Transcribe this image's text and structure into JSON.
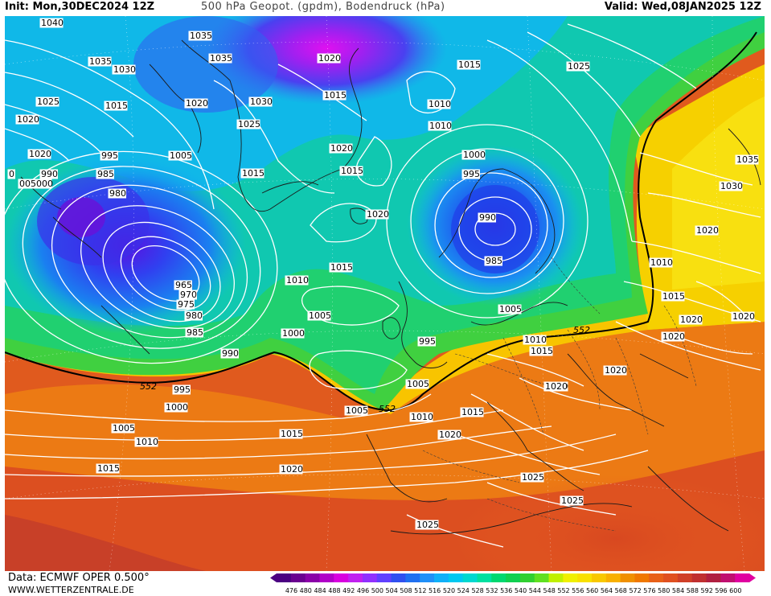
{
  "header": {
    "init": "Init: Mon,30DEC2024 12Z",
    "title": "500 hPa Geopot. (gpdm), Bodendruck (hPa)",
    "valid": "Valid: Wed,08JAN2025 12Z"
  },
  "footer": {
    "source": "Data: ECMWF OPER 0.500°",
    "website": "WWW.WETTERZENTRALE.DE"
  },
  "legend": {
    "ticks": [
      "476",
      "480",
      "484",
      "488",
      "492",
      "496",
      "500",
      "504",
      "508",
      "512",
      "516",
      "520",
      "524",
      "528",
      "532",
      "536",
      "540",
      "544",
      "548",
      "552",
      "556",
      "560",
      "564",
      "568",
      "572",
      "576",
      "580",
      "584",
      "588",
      "592",
      "596",
      "600"
    ],
    "colors": [
      "#4b0082",
      "#6a0090",
      "#8a00a8",
      "#b000c8",
      "#d800e0",
      "#c020f0",
      "#9030ff",
      "#6040ff",
      "#3050f0",
      "#2070f0",
      "#2090f8",
      "#10b0f8",
      "#00c8f0",
      "#00d8d0",
      "#00e0a0",
      "#00d870",
      "#10d050",
      "#30d030",
      "#60e020",
      "#c0f000",
      "#f0f000",
      "#f8e000",
      "#f8c800",
      "#f8b000",
      "#f09000",
      "#f07800",
      "#e86018",
      "#e05020",
      "#d04028",
      "#c03030",
      "#b02040",
      "#c01070",
      "#e000a0"
    ]
  },
  "isobars": [
    {
      "label": "1040"
    },
    {
      "label": "1035"
    },
    {
      "label": "1035"
    },
    {
      "label": "1035"
    },
    {
      "label": "1030"
    },
    {
      "label": "1030"
    },
    {
      "label": "1025"
    },
    {
      "label": "1020"
    },
    {
      "label": "1015"
    },
    {
      "label": "1020"
    },
    {
      "label": "1025"
    },
    {
      "label": "995"
    },
    {
      "label": "1005"
    },
    {
      "label": "990"
    },
    {
      "label": "985"
    },
    {
      "label": "980"
    },
    {
      "label": "1015"
    },
    {
      "label": "005000"
    },
    {
      "label": "0"
    },
    {
      "label": "965"
    },
    {
      "label": "970"
    },
    {
      "label": "975"
    },
    {
      "label": "980"
    },
    {
      "label": "985"
    },
    {
      "label": "990"
    },
    {
      "label": "1010"
    },
    {
      "label": "1005"
    },
    {
      "label": "1000"
    },
    {
      "label": "1015"
    },
    {
      "label": "1020"
    },
    {
      "label": "1020"
    },
    {
      "label": "1015"
    },
    {
      "label": "1010"
    },
    {
      "label": "1015"
    },
    {
      "label": "1010"
    },
    {
      "label": "1020"
    },
    {
      "label": "1015"
    },
    {
      "label": "1025"
    },
    {
      "label": "1005"
    },
    {
      "label": "1000"
    },
    {
      "label": "995"
    },
    {
      "label": "990"
    },
    {
      "label": "985"
    },
    {
      "label": "1010"
    },
    {
      "label": "1005"
    },
    {
      "label": "1035"
    },
    {
      "label": "1030"
    },
    {
      "label": "1020"
    },
    {
      "label": "1015"
    },
    {
      "label": "1020"
    },
    {
      "label": "1020"
    },
    {
      "label": "1020"
    },
    {
      "label": "1010"
    },
    {
      "label": "1015"
    },
    {
      "label": "1020"
    },
    {
      "label": "995"
    },
    {
      "label": "1000"
    },
    {
      "label": "995"
    },
    {
      "label": "1000"
    },
    {
      "label": "1005"
    },
    {
      "label": "1010"
    },
    {
      "label": "1015"
    },
    {
      "label": "1020"
    },
    {
      "label": "1020"
    },
    {
      "label": "1005"
    },
    {
      "label": "1010"
    },
    {
      "label": "1015"
    },
    {
      "label": "1020"
    },
    {
      "label": "1025"
    },
    {
      "label": "1025"
    },
    {
      "label": "1025"
    },
    {
      "label": "1015"
    },
    {
      "label": "1020"
    }
  ],
  "height_labels": [
    "552",
    "552",
    "552"
  ]
}
